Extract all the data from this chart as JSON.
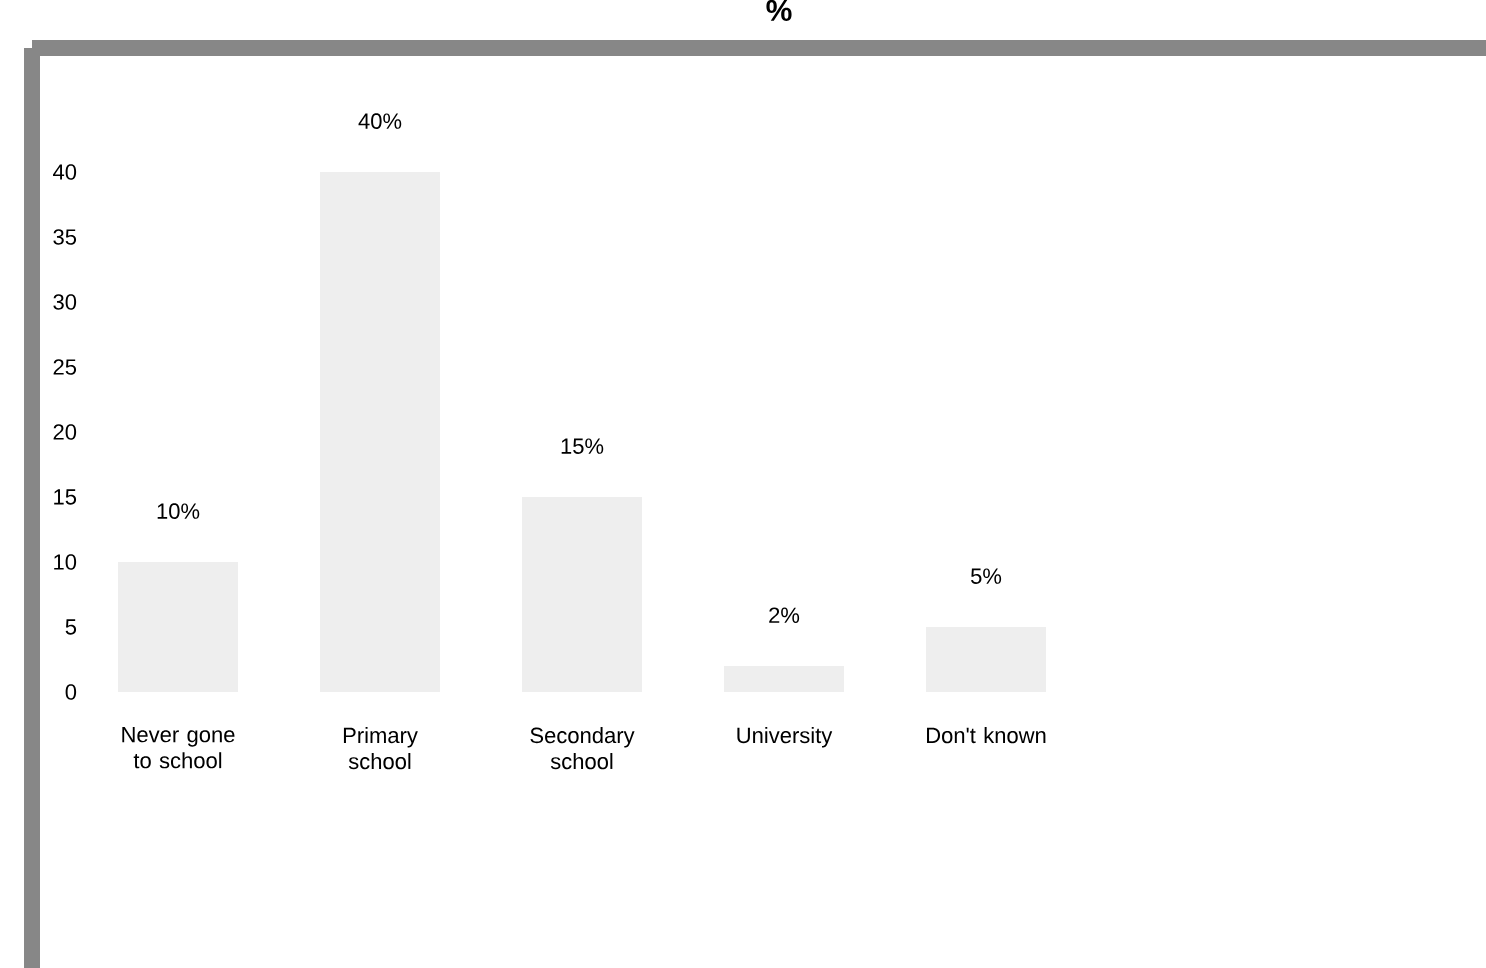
{
  "chart_data": {
    "type": "bar",
    "title": "%",
    "categories": [
      "Never gone to school",
      "Primary school",
      "Secondary school",
      "University",
      "Don't known"
    ],
    "values": [
      10,
      40,
      15,
      2,
      5
    ],
    "value_labels": [
      "10%",
      "40%",
      "15%",
      "2%",
      "5%"
    ],
    "color": "#eeeeee",
    "ylim": [
      0,
      40
    ],
    "yticks": [
      0,
      5,
      10,
      15,
      20,
      25,
      30,
      35,
      40
    ]
  }
}
